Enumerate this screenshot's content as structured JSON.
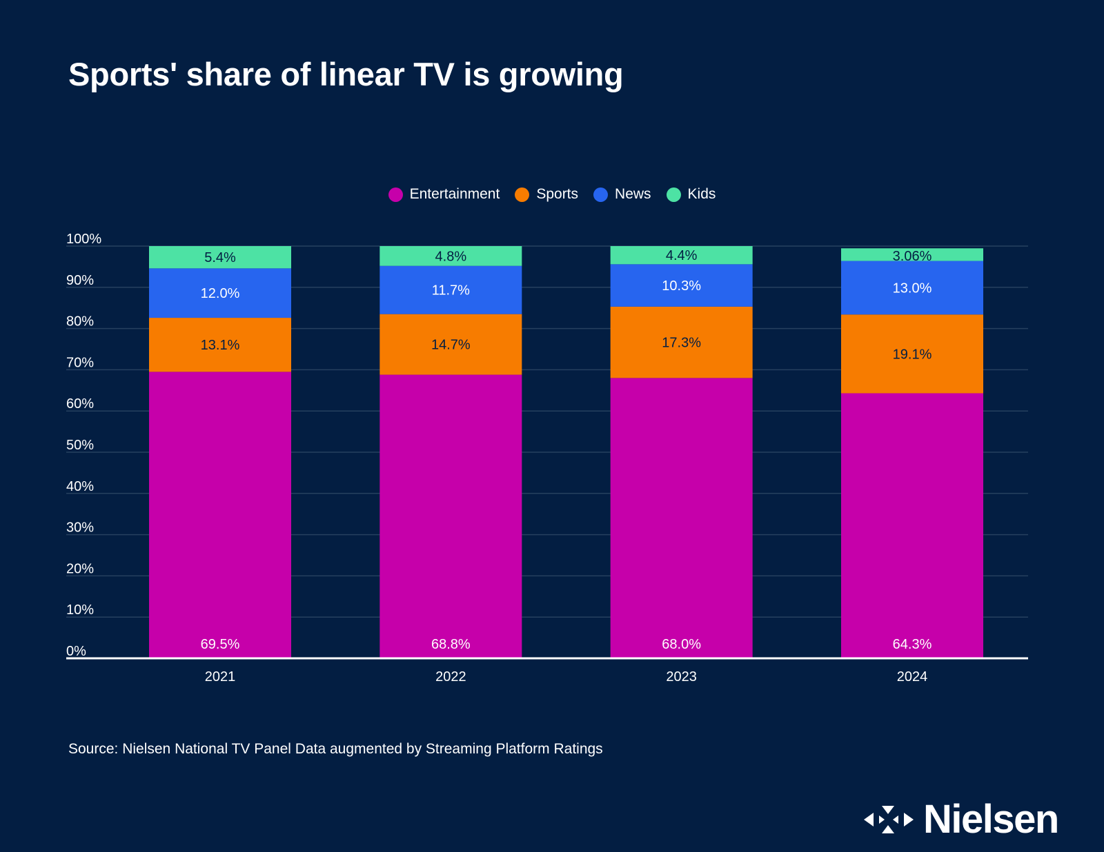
{
  "title": "Sports' share of linear TV is growing",
  "source": "Source: Nielsen National TV Panel Data augmented by Streaming Platform Ratings",
  "logo": {
    "text": "Nielsen",
    "icon": "nielsen-arrows-icon"
  },
  "colors": {
    "background": "#031e42",
    "Entertainment": "#c600aa",
    "Sports": "#f77c00",
    "News": "#2765ef",
    "Kids": "#4de2a4",
    "grid": "#26405f",
    "axis": "#ffffff"
  },
  "chart_data": {
    "type": "bar",
    "stacked": true,
    "categories": [
      "2021",
      "2022",
      "2023",
      "2024"
    ],
    "series": [
      {
        "name": "Entertainment",
        "values": [
          69.5,
          68.8,
          68.0,
          64.3
        ],
        "labels": [
          "69.5%",
          "68.8%",
          "68.0%",
          "64.3%"
        ]
      },
      {
        "name": "Sports",
        "values": [
          13.1,
          14.7,
          17.3,
          19.1
        ],
        "labels": [
          "13.1%",
          "14.7%",
          "17.3%",
          "19.1%"
        ]
      },
      {
        "name": "News",
        "values": [
          12.0,
          11.7,
          10.3,
          13.0
        ],
        "labels": [
          "12.0%",
          "11.7%",
          "10.3%",
          "13.0%"
        ]
      },
      {
        "name": "Kids",
        "values": [
          5.4,
          4.8,
          4.4,
          3.06
        ],
        "labels": [
          "5.4%",
          "4.8%",
          "4.4%",
          "3.06%"
        ]
      }
    ],
    "yticks": [
      "0%",
      "10%",
      "20%",
      "30%",
      "40%",
      "50%",
      "60%",
      "70%",
      "80%",
      "90%",
      "100%"
    ],
    "ylim": [
      0,
      100
    ],
    "grid": true,
    "legend": "top-center"
  }
}
